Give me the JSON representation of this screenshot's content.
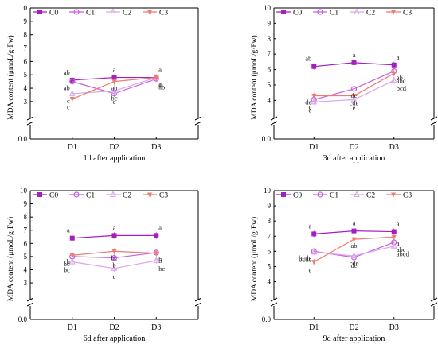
{
  "chart_data": [
    {
      "type": "line",
      "title": "1d after application",
      "ylabel": "MDA content (μmoL/g·Fw)",
      "categories": [
        "D1",
        "D2",
        "D3"
      ],
      "yticks": [
        "0.0",
        "3",
        "4",
        "5",
        "6",
        "7",
        "8",
        "9",
        "10"
      ],
      "ylim": [
        0,
        10
      ],
      "y_axis_break": [
        0.3,
        2.7
      ],
      "legend_position": "top",
      "series": [
        {
          "name": "C0",
          "color": "#a31fbf",
          "marker": "square",
          "values": [
            4.6,
            4.8,
            4.8
          ],
          "labels": [
            "ab",
            "a",
            "a"
          ]
        },
        {
          "name": "C1",
          "color": "#c65ee2",
          "marker": "circle",
          "values": [
            4.5,
            3.6,
            4.7
          ],
          "labels": [
            "ab",
            "c",
            "ab"
          ]
        },
        {
          "name": "C2",
          "color": "#dca5ec",
          "marker": "triangle-up",
          "values": [
            3.6,
            3.8,
            4.8
          ],
          "labels": [
            "c",
            "bc",
            "a"
          ]
        },
        {
          "name": "C3",
          "color": "#ed7b6e",
          "marker": "triangle-down",
          "values": [
            3.2,
            4.5,
            4.8
          ],
          "labels": [
            "c",
            "ab",
            "a"
          ]
        }
      ]
    },
    {
      "type": "line",
      "title": "3d after application",
      "ylabel": "MDA content (μmoL/g·Fw)",
      "categories": [
        "D1",
        "D2",
        "D3"
      ],
      "yticks": [
        "0.0",
        "4",
        "5",
        "6",
        "7",
        "8",
        "9",
        "10"
      ],
      "ylim": [
        0,
        10
      ],
      "y_axis_break": [
        0.3,
        3.6
      ],
      "legend_position": "top",
      "series": [
        {
          "name": "C0",
          "color": "#a31fbf",
          "marker": "square",
          "values": [
            6.2,
            6.45,
            6.3
          ],
          "labels": [
            "ab",
            "a",
            "a"
          ]
        },
        {
          "name": "C1",
          "color": "#c65ee2",
          "marker": "circle",
          "values": [
            4.05,
            4.75,
            5.9
          ],
          "labels": [
            "e",
            "de",
            "ab"
          ]
        },
        {
          "name": "C2",
          "color": "#dca5ec",
          "marker": "triangle-up",
          "values": [
            3.9,
            4.05,
            5.3
          ],
          "labels": [
            "e",
            "e",
            "bcd"
          ]
        },
        {
          "name": "C3",
          "color": "#ed7b6e",
          "marker": "triangle-down",
          "values": [
            4.3,
            4.3,
            5.75
          ],
          "labels": [
            "de",
            "cde",
            "abc"
          ]
        }
      ]
    },
    {
      "type": "line",
      "title": "6d after application",
      "ylabel": "MDA content (μmoL/g·Fw)",
      "categories": [
        "D1",
        "D2",
        "D3"
      ],
      "yticks": [
        "0.0",
        "3",
        "4",
        "5",
        "6",
        "7",
        "8",
        "9",
        "10"
      ],
      "ylim": [
        0,
        10
      ],
      "y_axis_break": [
        0.3,
        2.7
      ],
      "legend_position": "top",
      "series": [
        {
          "name": "C0",
          "color": "#a31fbf",
          "marker": "square",
          "values": [
            6.4,
            6.6,
            6.6
          ],
          "labels": [
            "a",
            "a",
            "a"
          ]
        },
        {
          "name": "C1",
          "color": "#c65ee2",
          "marker": "circle",
          "values": [
            5.0,
            4.9,
            5.3
          ],
          "labels": [
            "bc",
            "b",
            "b"
          ]
        },
        {
          "name": "C2",
          "color": "#dca5ec",
          "marker": "triangle-up",
          "values": [
            4.6,
            4.1,
            4.7
          ],
          "labels": [
            "bc",
            "c",
            "bc"
          ]
        },
        {
          "name": "C3",
          "color": "#ed7b6e",
          "marker": "triangle-down",
          "values": [
            5.1,
            5.4,
            5.25
          ],
          "labels": [
            "b",
            "bc",
            "b"
          ]
        }
      ]
    },
    {
      "type": "line",
      "title": "9d after application",
      "ylabel": "MDA content (μmoL/g·Fw)",
      "categories": [
        "D1",
        "D2",
        "D3"
      ],
      "yticks": [
        "0.0",
        "4",
        "5",
        "6",
        "7",
        "8",
        "9",
        "10"
      ],
      "ylim": [
        0,
        10
      ],
      "y_axis_break": [
        0.3,
        3.6
      ],
      "legend_position": "top",
      "series": [
        {
          "name": "C0",
          "color": "#a31fbf",
          "marker": "square",
          "values": [
            7.15,
            7.35,
            7.3
          ],
          "labels": [
            "a",
            "a",
            "a"
          ]
        },
        {
          "name": "C1",
          "color": "#c65ee2",
          "marker": "circle",
          "values": [
            6.0,
            5.6,
            6.6
          ],
          "labels": [
            "bcde",
            "de",
            "abc"
          ]
        },
        {
          "name": "C2",
          "color": "#dca5ec",
          "marker": "triangle-up",
          "values": [
            5.95,
            5.7,
            6.35
          ],
          "labels": [
            "bcde",
            "cde",
            "abcd"
          ]
        },
        {
          "name": "C3",
          "color": "#ed7b6e",
          "marker": "triangle-down",
          "values": [
            5.3,
            6.8,
            6.95
          ],
          "labels": [
            "e",
            "ab",
            "a"
          ]
        }
      ]
    }
  ]
}
